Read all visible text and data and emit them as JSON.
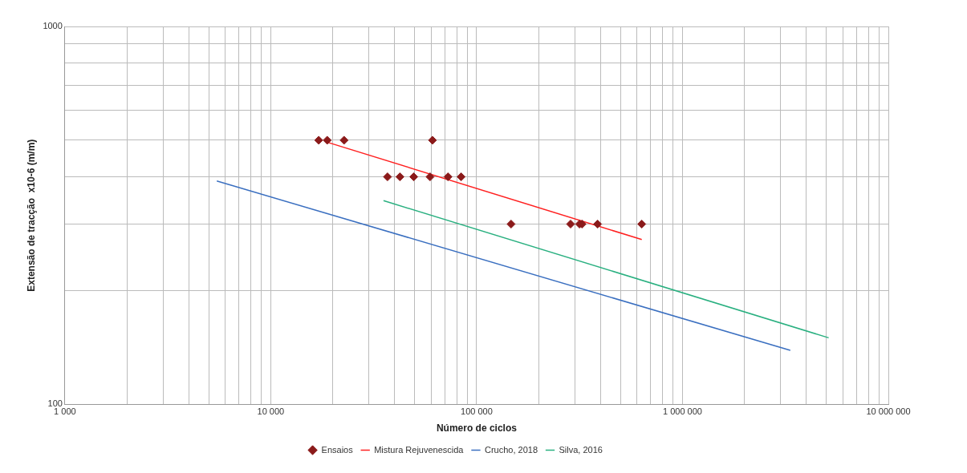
{
  "chart_data": {
    "type": "scatter",
    "xlabel": "Número de ciclos",
    "ylabel": "Extensão de tracção  x10-6 (m/m)",
    "log": "xy",
    "grid": true,
    "legend": "bottom",
    "xlim": [
      1000,
      10000000
    ],
    "ylim": [
      100,
      1000
    ],
    "xticks": [
      {
        "value": 1000,
        "label": "1 000"
      },
      {
        "value": 2000,
        "label": null
      },
      {
        "value": 3000,
        "label": null
      },
      {
        "value": 4000,
        "label": null
      },
      {
        "value": 5000,
        "label": null
      },
      {
        "value": 6000,
        "label": null
      },
      {
        "value": 7000,
        "label": null
      },
      {
        "value": 8000,
        "label": null
      },
      {
        "value": 9000,
        "label": null
      },
      {
        "value": 10000,
        "label": "10 000"
      },
      {
        "value": 20000,
        "label": null
      },
      {
        "value": 30000,
        "label": null
      },
      {
        "value": 40000,
        "label": null
      },
      {
        "value": 50000,
        "label": null
      },
      {
        "value": 60000,
        "label": null
      },
      {
        "value": 70000,
        "label": null
      },
      {
        "value": 80000,
        "label": null
      },
      {
        "value": 90000,
        "label": null
      },
      {
        "value": 100000,
        "label": "100 000"
      },
      {
        "value": 200000,
        "label": null
      },
      {
        "value": 300000,
        "label": null
      },
      {
        "value": 400000,
        "label": null
      },
      {
        "value": 500000,
        "label": null
      },
      {
        "value": 600000,
        "label": null
      },
      {
        "value": 700000,
        "label": null
      },
      {
        "value": 800000,
        "label": null
      },
      {
        "value": 900000,
        "label": null
      },
      {
        "value": 1000000,
        "label": "1 000 000"
      },
      {
        "value": 2000000,
        "label": null
      },
      {
        "value": 3000000,
        "label": null
      },
      {
        "value": 4000000,
        "label": null
      },
      {
        "value": 5000000,
        "label": null
      },
      {
        "value": 6000000,
        "label": null
      },
      {
        "value": 7000000,
        "label": null
      },
      {
        "value": 8000000,
        "label": null
      },
      {
        "value": 9000000,
        "label": null
      },
      {
        "value": 10000000,
        "label": "10 000 000"
      }
    ],
    "yticks": [
      100,
      {
        "value": 200,
        "label": null
      },
      {
        "value": 300,
        "label": null
      },
      {
        "value": 400,
        "label": null
      },
      {
        "value": 500,
        "label": null
      },
      {
        "value": 600,
        "label": null
      },
      {
        "value": 700,
        "label": null
      },
      {
        "value": 800,
        "label": null
      },
      {
        "value": 900,
        "label": null
      },
      1000
    ],
    "series": [
      {
        "name": "Ensaios",
        "type": "scatter",
        "marker": "diamond",
        "color": "#8b1a1a",
        "x": [
          17100,
          18800,
          22700,
          61000,
          36900,
          42400,
          49500,
          59400,
          72600,
          84100,
          147000,
          286000,
          316000,
          325000,
          387000,
          634000
        ],
        "values": [
          500,
          500,
          500,
          500,
          400,
          400,
          400,
          400,
          400,
          400,
          300,
          300,
          300,
          300,
          300,
          300
        ]
      },
      {
        "name": "Mistura Rejuvenescida",
        "type": "line",
        "marker": "none",
        "color": "#ff2020",
        "x": [
          18800,
          634000
        ],
        "values": [
          494,
          273
        ]
      },
      {
        "name": "Crucho, 2018",
        "type": "line",
        "marker": "none",
        "color": "#3a6fc0",
        "x": [
          5470,
          3340000
        ],
        "values": [
          390,
          139
        ]
      },
      {
        "name": "Silva, 2016",
        "type": "line",
        "marker": "none",
        "color": "#2ab080",
        "x": [
          35300,
          5130000
        ],
        "values": [
          346,
          150
        ]
      }
    ]
  }
}
